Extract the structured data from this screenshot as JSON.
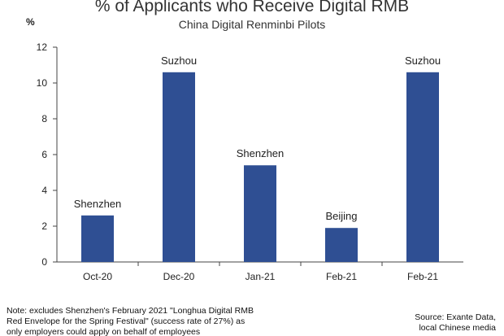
{
  "chart_data": {
    "type": "bar",
    "title": "% of Applicants who Receive Digital RMB",
    "subtitle": "China Digital Renminbi Pilots",
    "ylabel": "%",
    "xlabel": "",
    "ylim": [
      0,
      12
    ],
    "yticks": [
      0,
      2,
      4,
      6,
      8,
      10,
      12
    ],
    "grid": false,
    "bar_color": "#2f4f93",
    "categories": [
      "Oct-20",
      "Dec-20",
      "Jan-21",
      "Feb-21",
      "Feb-21"
    ],
    "values": [
      2.6,
      10.6,
      5.4,
      1.9,
      10.6
    ],
    "bar_labels": [
      "Shenzhen",
      "Suzhou",
      "Shenzhen",
      "Beijing",
      "Suzhou"
    ]
  },
  "note": {
    "lines": [
      "Note: excludes Shenzhen's February 2021 \"Longhua Digital RMB",
      "Red Envelope for the Spring Festival\" (success rate of 27%) as",
      "only employers could apply on behalf of employees"
    ]
  },
  "source": {
    "lines": [
      "Source: Exante Data,",
      "local Chinese media"
    ]
  }
}
